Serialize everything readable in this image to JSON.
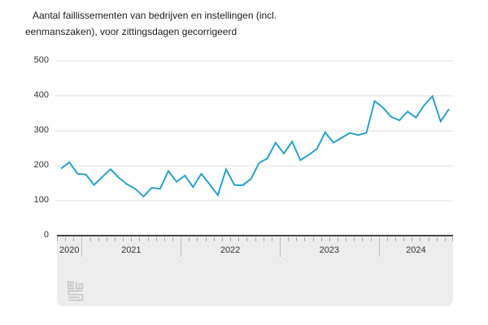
{
  "title": {
    "line1": "Aantal faillissementen van bedrijven en instellingen (incl.",
    "line2": "eenmanszaken), voor zittingsdagen gecorrigeerd"
  },
  "chart_data": {
    "type": "line",
    "title": "Aantal faillissementen van bedrijven en instellingen (incl. eenmanszaken), voor zittingsdagen gecorrigeerd",
    "series_name": "Aantal faillissementen",
    "x": [
      "2020-10",
      "2020-11",
      "2020-12",
      "2021-01",
      "2021-02",
      "2021-03",
      "2021-04",
      "2021-05",
      "2021-06",
      "2021-07",
      "2021-08",
      "2021-09",
      "2021-10",
      "2021-11",
      "2021-12",
      "2022-01",
      "2022-02",
      "2022-03",
      "2022-04",
      "2022-05",
      "2022-06",
      "2022-07",
      "2022-08",
      "2022-09",
      "2022-10",
      "2022-11",
      "2022-12",
      "2023-01",
      "2023-02",
      "2023-03",
      "2023-04",
      "2023-05",
      "2023-06",
      "2023-07",
      "2023-08",
      "2023-09",
      "2023-10",
      "2023-11",
      "2023-12",
      "2024-01",
      "2024-02",
      "2024-03",
      "2024-04",
      "2024-05",
      "2024-06",
      "2024-07",
      "2024-08",
      "2024-09"
    ],
    "values": [
      192,
      210,
      177,
      175,
      145,
      168,
      190,
      166,
      147,
      134,
      112,
      137,
      134,
      185,
      154,
      172,
      139,
      177,
      147,
      116,
      190,
      145,
      144,
      162,
      208,
      221,
      266,
      235,
      269,
      216,
      231,
      248,
      296,
      266,
      280,
      294,
      288,
      294,
      385,
      367,
      340,
      330,
      355,
      338,
      373,
      399,
      327,
      362
    ],
    "ylim": [
      0,
      500
    ],
    "y_ticks": [
      0,
      100,
      200,
      300,
      400,
      500
    ],
    "year_labels": [
      "2020",
      "2021",
      "2022",
      "2023",
      "2024"
    ],
    "line_color": "#2aa1c7",
    "grid": true,
    "legend": "none"
  },
  "colors": {
    "accent_line": "#2aa1c7",
    "gridline": "#e0e0e0",
    "axis_band_bg": "#ededed",
    "axis_band_border": "#474747",
    "text": "#1c1c1c"
  },
  "logo": {
    "name": "cbs-logo"
  }
}
